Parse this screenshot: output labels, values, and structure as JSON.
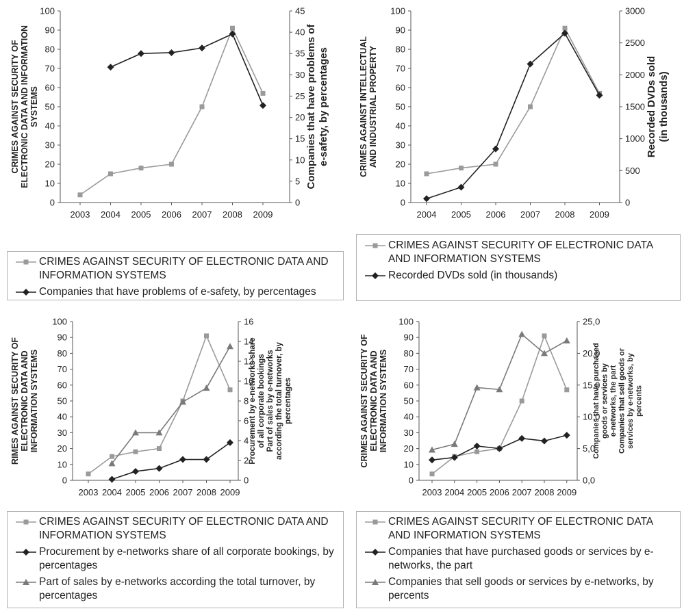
{
  "colors": {
    "gray": "#9a9a9a",
    "black": "#222222",
    "axis": "#555555"
  },
  "chart_data": [
    {
      "type": "line",
      "x": [
        "2003",
        "2004",
        "2005",
        "2006",
        "2007",
        "2008",
        "2009"
      ],
      "left_axis": {
        "label": "CRIMES AGAINST SECURITY OF ELECTRONIC DATA AND INFORMATION SYSTEMS",
        "ylim": [
          0,
          100
        ],
        "ticks": [
          "0",
          "10",
          "20",
          "30",
          "40",
          "50",
          "60",
          "70",
          "80",
          "90",
          "100"
        ]
      },
      "right_axis": {
        "label": "Companies that have problems of e-safety, by percentages",
        "ylim": [
          0,
          45
        ],
        "ticks": [
          "0",
          "5",
          "10",
          "15",
          "20",
          "25",
          "30",
          "35",
          "40",
          "45"
        ]
      },
      "series": [
        {
          "name": "CRIMES AGAINST SECURITY OF ELECTRONIC DATA AND INFORMATION SYSTEMS",
          "axis": "left",
          "marker": "square",
          "color": "#9a9a9a",
          "values": [
            4,
            15,
            18,
            20,
            50,
            91,
            57
          ]
        },
        {
          "name": "Companies that have problems of e-safety, by percentages",
          "axis": "right",
          "marker": "diamond",
          "color": "#222222",
          "values": [
            null,
            31.8,
            35,
            35.2,
            36.3,
            39.6,
            22.8
          ]
        }
      ]
    },
    {
      "type": "line",
      "x": [
        "2004",
        "2005",
        "2006",
        "2007",
        "2008",
        "2009"
      ],
      "left_axis": {
        "label": "CRIMES AGAINST INTELLECTUAL AND INDUSTRIAL PROPERTY",
        "ylim": [
          0,
          100
        ],
        "ticks": [
          "0",
          "10",
          "20",
          "30",
          "40",
          "50",
          "60",
          "70",
          "80",
          "90",
          "100"
        ]
      },
      "right_axis": {
        "label": "Recorded DVDs sold (in thousands)",
        "ylim": [
          0,
          3000
        ],
        "ticks": [
          "0",
          "500",
          "1000",
          "1500",
          "2000",
          "2500",
          "3000"
        ]
      },
      "series": [
        {
          "name": "CRIMES AGAINST SECURITY OF ELECTRONIC DATA AND INFORMATION SYSTEMS",
          "axis": "left",
          "marker": "square",
          "color": "#9a9a9a",
          "values": [
            15,
            18,
            20,
            50,
            91,
            57
          ]
        },
        {
          "name": "Recorded DVDs sold (in thousands)",
          "axis": "right",
          "marker": "diamond",
          "color": "#222222",
          "values": [
            60,
            240,
            840,
            2170,
            2650,
            1680
          ]
        }
      ]
    },
    {
      "type": "line",
      "x": [
        "2003",
        "2004",
        "2005",
        "2006",
        "2007",
        "2008",
        "2009"
      ],
      "left_axis": {
        "label": "RIMES AGAINST SECURITY OF ELECTRONIC DATA AND INFORMATION SYSTEMS",
        "ylim": [
          0,
          100
        ],
        "ticks": [
          "0",
          "10",
          "20",
          "30",
          "40",
          "50",
          "60",
          "70",
          "80",
          "90",
          "100"
        ]
      },
      "right_axis": {
        "label": "Procurement by e-networks share of all corporate bookings\nPart of sales by e-networks according the total turnover, by percentages",
        "ylim": [
          0,
          16
        ],
        "ticks": [
          "0",
          "2",
          "4",
          "6",
          "8",
          "10",
          "12",
          "14",
          "16"
        ]
      },
      "series": [
        {
          "name": "CRIMES AGAINST SECURITY OF ELECTRONIC DATA AND INFORMATION SYSTEMS",
          "axis": "left",
          "marker": "square",
          "color": "#9a9a9a",
          "values": [
            4,
            15,
            18,
            20,
            50,
            91,
            57
          ]
        },
        {
          "name": "Procurement by e-networks share of all corporate bookings, by percentages",
          "axis": "right",
          "marker": "diamond",
          "color": "#222222",
          "values": [
            null,
            0.1,
            0.9,
            1.2,
            2.1,
            2.1,
            3.8
          ]
        },
        {
          "name": "Part of sales by e-networks according the total turnover, by percentages",
          "axis": "right",
          "marker": "triangle",
          "color": "#7a7a7a",
          "values": [
            null,
            1.7,
            4.8,
            4.8,
            7.9,
            9.3,
            13.5
          ]
        }
      ]
    },
    {
      "type": "line",
      "x": [
        "2003",
        "2004",
        "2005",
        "2006",
        "2007",
        "2008",
        "2009"
      ],
      "left_axis": {
        "label": "CRIMES AGAINST SECURITY OF ELECTRONIC DATA AND INFORMATION SYSTEMS",
        "ylim": [
          0,
          100
        ],
        "ticks": [
          "0",
          "10",
          "20",
          "30",
          "40",
          "50",
          "60",
          "70",
          "80",
          "90",
          "100"
        ]
      },
      "right_axis": {
        "label": "Companies that have purchased goods or services by e-networks, the part\nCompanies that sell goods or services by e-networks, by percents",
        "ylim": [
          0,
          25
        ],
        "ticks": [
          "0,0",
          "5,0",
          "10,0",
          "15,0",
          "20,0",
          "25,0"
        ]
      },
      "series": [
        {
          "name": "CRIMES AGAINST SECURITY OF ELECTRONIC DATA AND INFORMATION SYSTEMS",
          "axis": "left",
          "marker": "square",
          "color": "#9a9a9a",
          "values": [
            4,
            15,
            18,
            20,
            50,
            91,
            57
          ]
        },
        {
          "name": "Companies that have purchased goods or services by e-networks, the part",
          "axis": "right",
          "marker": "diamond",
          "color": "#222222",
          "values": [
            3.2,
            3.6,
            5.4,
            5.0,
            6.6,
            6.2,
            7.1
          ]
        },
        {
          "name": "Companies that sell goods or services by e-networks, by percents",
          "axis": "right",
          "marker": "triangle",
          "color": "#7a7a7a",
          "values": [
            4.8,
            5.7,
            14.6,
            14.3,
            23.0,
            20.0,
            22.0
          ]
        }
      ]
    }
  ],
  "legends": [
    [
      {
        "label": "CRIMES AGAINST SECURITY OF ELECTRONIC DATA AND INFORMATION SYSTEMS",
        "marker": "square"
      },
      {
        "label": "Companies that have problems of e-safety, by percentages",
        "marker": "diamond"
      }
    ],
    [
      {
        "label": "CRIMES AGAINST SECURITY OF ELECTRONIC DATA AND INFORMATION SYSTEMS",
        "marker": "square"
      },
      {
        "label": "Recorded DVDs sold (in thousands)",
        "marker": "diamond"
      }
    ],
    [
      {
        "label": "CRIMES AGAINST SECURITY OF ELECTRONIC DATA AND INFORMATION SYSTEMS",
        "marker": "square"
      },
      {
        "label": "Procurement by e-networks share of all corporate bookings, by percentages",
        "marker": "diamond"
      },
      {
        "label": "Part of sales by e-networks according the total turnover, by percentages",
        "marker": "triangle"
      }
    ],
    [
      {
        "label": "CRIMES AGAINST SECURITY OF ELECTRONIC DATA AND INFORMATION SYSTEMS",
        "marker": "square"
      },
      {
        "label": "Companies that have purchased goods or services by e-networks, the part",
        "marker": "diamond"
      },
      {
        "label": "Companies that sell goods or services by e-networks, by percents",
        "marker": "triangle"
      }
    ]
  ]
}
